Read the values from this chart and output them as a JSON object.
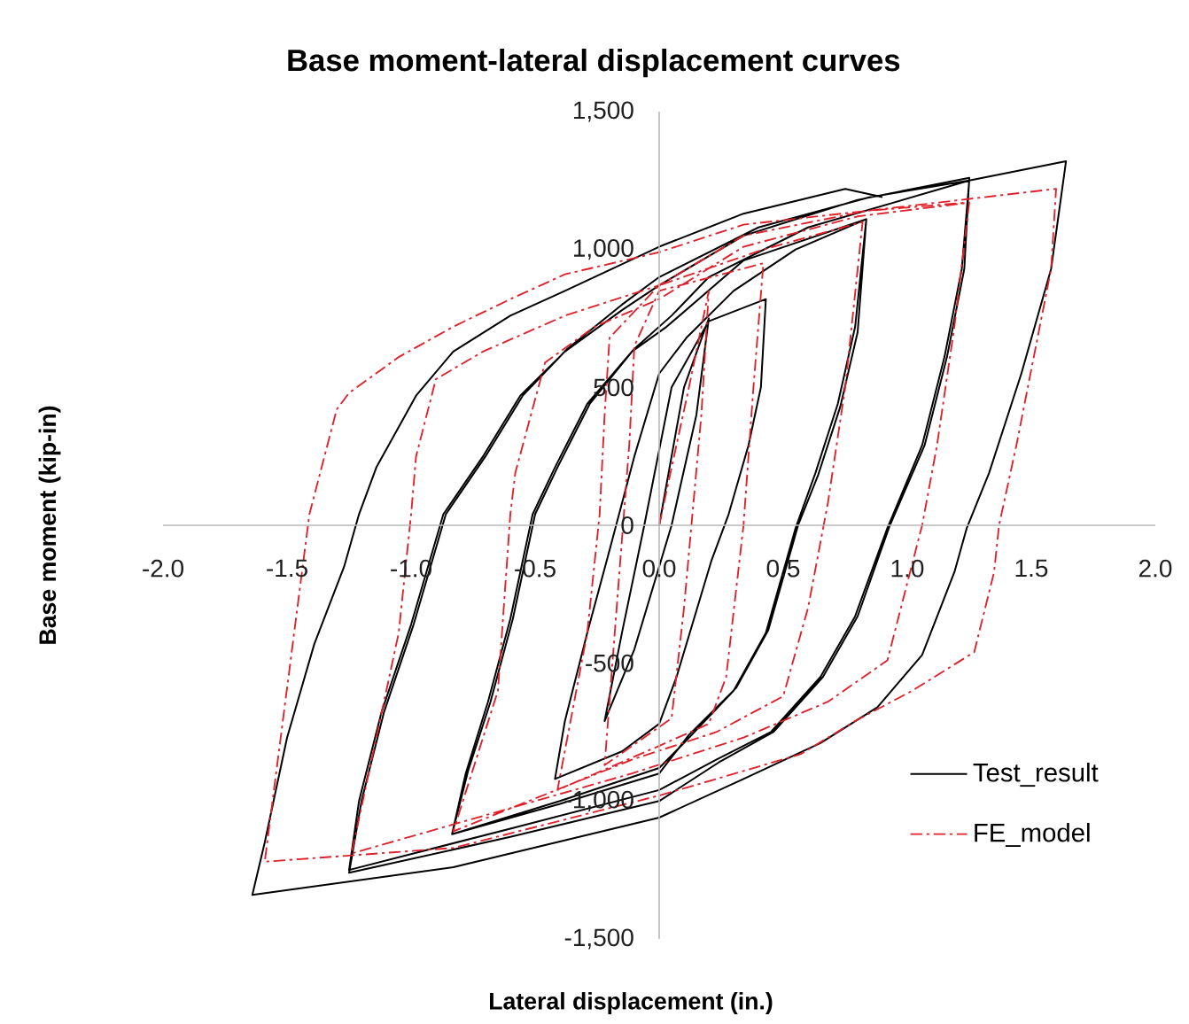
{
  "chart_data": {
    "type": "line",
    "title": "Base moment-lateral displacement curves",
    "xlabel": "Lateral displacement (in.)",
    "ylabel": "Base moment (kip-in)",
    "xlim": [
      -2,
      2
    ],
    "ylim": [
      -1500,
      1500
    ],
    "xticks": [
      {
        "value": -2,
        "label": "-2.0"
      },
      -1.5,
      {
        "value": -1,
        "label": "-1.0"
      },
      -0.5,
      {
        "value": 0,
        "label": "0.0"
      },
      0.5,
      {
        "value": 1,
        "label": "1.0"
      },
      1.5,
      {
        "value": 2,
        "label": "2.0"
      }
    ],
    "yticks": [
      {
        "value": -1500,
        "label": "-1,500"
      },
      {
        "value": -1000,
        "label": "-1,000"
      },
      -500,
      0,
      500,
      {
        "value": 1000,
        "label": "1,000"
      },
      {
        "value": 1500,
        "label": "1,500"
      }
    ],
    "legend": "bottom right",
    "series": [
      {
        "name": "Test_result",
        "color": "#000000",
        "line_style": "solid",
        "x": [
          0,
          0.1,
          0.2,
          0.15,
          0.05,
          -0.1,
          -0.22,
          -0.15,
          -0.06,
          0.05,
          0.2,
          0.43,
          0.41,
          0.36,
          0.28,
          0.21,
          0.07,
          0,
          -0.15,
          -0.42,
          -0.38,
          -0.29,
          -0.2,
          -0.1,
          0,
          0.11,
          0.3,
          0.55,
          0.835,
          0.79,
          0.72,
          0.63,
          0.55,
          0.43,
          0.3,
          0.11,
          0,
          -0.4,
          -0.835,
          -0.78,
          -0.69,
          -0.6,
          -0.51,
          -0.42,
          -0.29,
          -0.11,
          0.03,
          0.34,
          0.835,
          0.8,
          0.73,
          0.64,
          0.56,
          0.44,
          0.31,
          0.12,
          0,
          -0.4,
          -0.835,
          -0.77,
          -0.68,
          -0.59,
          -0.5,
          -0.41,
          -0.28,
          -0.1,
          0.05,
          0.2,
          0.6,
          1.25,
          1.22,
          1.15,
          1.06,
          0.92,
          0.79,
          0.65,
          0.45,
          0.23,
          0,
          -0.6,
          -1.25,
          -1.21,
          -1.12,
          -1,
          -0.87,
          -0.71,
          -0.56,
          -0.38,
          -0.15,
          0,
          0.34,
          0.8,
          1.25,
          1.23,
          1.16,
          1.07,
          0.93,
          0.8,
          0.66,
          0.46,
          0.24,
          0,
          -0.6,
          -1.25,
          -1.2,
          -1.11,
          -0.99,
          -0.86,
          -0.7,
          -0.55,
          -0.37,
          -0.15,
          0,
          0.4,
          0.85,
          1.25,
          1.64,
          1.58,
          1.46,
          1.33,
          1.24,
          1.19,
          1.06,
          0.88,
          0.65,
          0.34,
          0,
          -0.83,
          -1.64,
          -1.59,
          -1.5,
          -1.39,
          -1.27,
          -1.21,
          -1.14,
          -0.98,
          -0.83,
          -0.6,
          -0.38,
          0,
          0.34,
          0.75,
          0.9
        ],
        "values": [
          0,
          500,
          750,
          400,
          0,
          -450,
          -710,
          -390,
          0,
          500,
          740,
          820,
          500,
          290,
          40,
          -130,
          -550,
          -720,
          -820,
          -920,
          -710,
          -390,
          -90,
          250,
          550,
          680,
          850,
          1000,
          1110,
          720,
          440,
          190,
          -10,
          -390,
          -600,
          -780,
          -880,
          -1000,
          -1120,
          -900,
          -640,
          -340,
          40,
          210,
          440,
          630,
          720,
          960,
          1110,
          700,
          430,
          180,
          0,
          -380,
          -590,
          -760,
          -900,
          -1010,
          -1120,
          -890,
          -640,
          -340,
          40,
          210,
          440,
          640,
          760,
          900,
          1080,
          1250,
          930,
          610,
          290,
          -10,
          -330,
          -550,
          -750,
          -850,
          -960,
          -1100,
          -1250,
          -1000,
          -680,
          -360,
          40,
          250,
          470,
          630,
          780,
          870,
          1050,
          1180,
          1260,
          930,
          610,
          290,
          0,
          -330,
          -550,
          -750,
          -860,
          -1000,
          -1130,
          -1260,
          -1000,
          -680,
          -360,
          40,
          250,
          470,
          640,
          800,
          900,
          1080,
          1190,
          1250,
          1320,
          930,
          550,
          190,
          -10,
          -170,
          -470,
          -660,
          -790,
          -920,
          -1060,
          -1240,
          -1340,
          -1150,
          -770,
          -430,
          -150,
          40,
          210,
          470,
          630,
          760,
          850,
          1010,
          1130,
          1220,
          1190
        ]
      },
      {
        "name": "FE_model",
        "color": "#e0202a",
        "line_style": "dashdot",
        "x": [
          0,
          0.12,
          0.2,
          0.17,
          0.1,
          0.05,
          -0.22,
          -0.18,
          -0.12,
          -0.1,
          0,
          0.42,
          0.38,
          0.34,
          0.27,
          0.2,
          0,
          -0.41,
          -0.29,
          -0.24,
          -0.22,
          -0.2,
          0,
          0.42,
          0.82,
          0.75,
          0.68,
          0.6,
          0.5,
          0.23,
          -0.11,
          -0.83,
          -0.65,
          -0.6,
          -0.58,
          -0.46,
          -0.26,
          0,
          0.34,
          0.8,
          1.25,
          1.19,
          1.12,
          1.06,
          1.04,
          0.92,
          0.68,
          0.34,
          -0.11,
          -1.24,
          -1.05,
          -1,
          -0.98,
          -0.9,
          -0.71,
          -0.38,
          0,
          0.34,
          0.835,
          1.6,
          1.58,
          1.51,
          1.44,
          1.37,
          1.35,
          1.27,
          1.02,
          0.79,
          0.57,
          0.23,
          0,
          -0.83,
          -1.59,
          -1.41,
          -1.3,
          -1.25,
          -1.05,
          -0.83,
          -0.6,
          -0.38,
          0,
          0.34,
          0.835,
          1.24
        ],
        "values": [
          0,
          500,
          850,
          400,
          -300,
          -700,
          -870,
          -400,
          300,
          650,
          850,
          950,
          500,
          0,
          -550,
          -720,
          -800,
          -960,
          -390,
          40,
          400,
          680,
          870,
          1000,
          1100,
          500,
          80,
          -300,
          -620,
          -750,
          -850,
          -1110,
          -600,
          40,
          190,
          590,
          720,
          820,
          1010,
          1120,
          1170,
          720,
          290,
          0,
          -70,
          -490,
          -640,
          -770,
          -900,
          -1190,
          -390,
          40,
          250,
          530,
          630,
          760,
          870,
          1050,
          1140,
          1220,
          930,
          610,
          290,
          0,
          -170,
          -460,
          -600,
          -710,
          -830,
          -920,
          -980,
          -1170,
          -1220,
          40,
          420,
          480,
          610,
          720,
          820,
          910,
          990,
          1090,
          1140,
          1170
        ]
      }
    ]
  }
}
